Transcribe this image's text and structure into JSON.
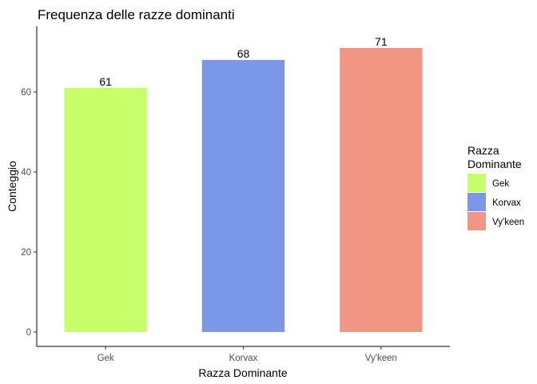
{
  "chart_data": {
    "type": "bar",
    "title": "Frequenza delle razze dominanti",
    "xlabel": "Razza Dominante",
    "ylabel": "Conteggio",
    "categories": [
      "Gek",
      "Korvax",
      "Vy'keen"
    ],
    "values": [
      61,
      68,
      71
    ],
    "colors": [
      "#c6ff6a",
      "#7b98e8",
      "#f29683"
    ],
    "data_labels": [
      "61",
      "68",
      "71"
    ],
    "y_ticks": [
      0,
      20,
      40,
      60
    ],
    "y_tick_labels": [
      "0",
      "20",
      "40",
      "60"
    ],
    "ylim": [
      0,
      74.55
    ],
    "grid": false,
    "legend": {
      "title_lines": [
        "Razza",
        "Dominante"
      ],
      "position": "right",
      "entries": [
        "Gek",
        "Korvax",
        "Vy'keen"
      ]
    }
  }
}
